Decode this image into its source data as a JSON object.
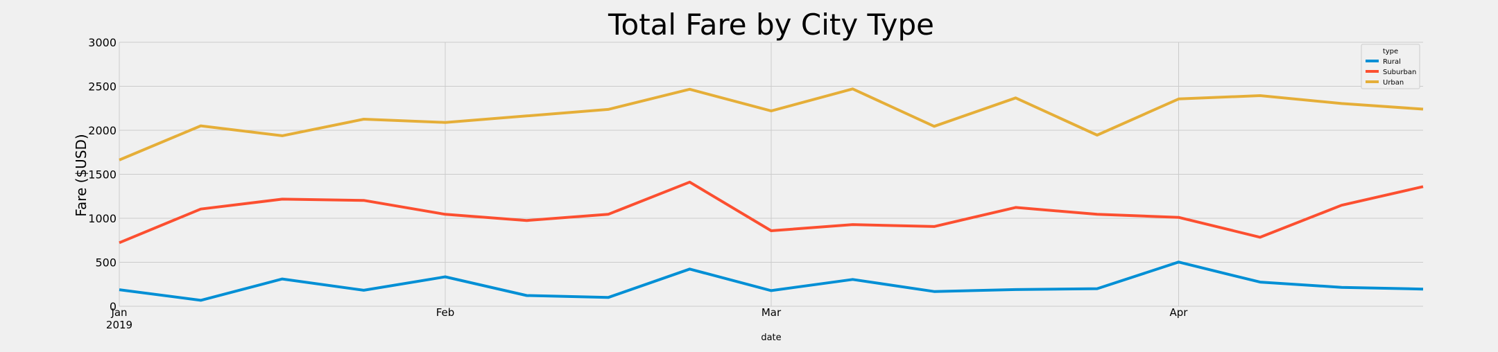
{
  "chart_data": {
    "type": "line",
    "title": "Total Fare by City Type",
    "xlabel": "date",
    "ylabel": "Fare ($USD)",
    "x": [
      "2019-01-06",
      "2019-01-13",
      "2019-01-20",
      "2019-01-27",
      "2019-02-03",
      "2019-02-10",
      "2019-02-17",
      "2019-02-24",
      "2019-03-03",
      "2019-03-10",
      "2019-03-17",
      "2019-03-24",
      "2019-03-31",
      "2019-04-07",
      "2019-04-14",
      "2019-04-21",
      "2019-04-28"
    ],
    "xlim": [
      "2019-01-06",
      "2019-04-28"
    ],
    "ylim": [
      0,
      3000
    ],
    "yticks": [
      0,
      500,
      1000,
      1500,
      2000,
      2500,
      3000
    ],
    "xticks": [
      {
        "date": "2019-01-06",
        "label": "Jan",
        "sublabel": "2019"
      },
      {
        "date": "2019-02-03",
        "label": "Feb",
        "sublabel": ""
      },
      {
        "date": "2019-03-03",
        "label": "Mar",
        "sublabel": ""
      },
      {
        "date": "2019-04-07",
        "label": "Apr",
        "sublabel": ""
      }
    ],
    "grid": true,
    "legend": {
      "title": "type",
      "placement": "top-right"
    },
    "series": [
      {
        "name": "Rural",
        "color": "#008fd5",
        "values": [
          188,
          68,
          310,
          182,
          335,
          122,
          100,
          423,
          178,
          305,
          168,
          190,
          200,
          502,
          275,
          215,
          195
        ]
      },
      {
        "name": "Suburban",
        "color": "#fc4f30",
        "values": [
          722,
          1105,
          1217,
          1203,
          1045,
          975,
          1045,
          1411,
          858,
          928,
          906,
          1123,
          1046,
          1010,
          784,
          1148,
          1360
        ]
      },
      {
        "name": "Urban",
        "color": "#e5ae38",
        "values": [
          1662,
          2050,
          1938,
          2126,
          2089,
          2163,
          2237,
          2466,
          2220,
          2470,
          2045,
          2368,
          1945,
          2356,
          2394,
          2304,
          2240
        ]
      }
    ]
  }
}
